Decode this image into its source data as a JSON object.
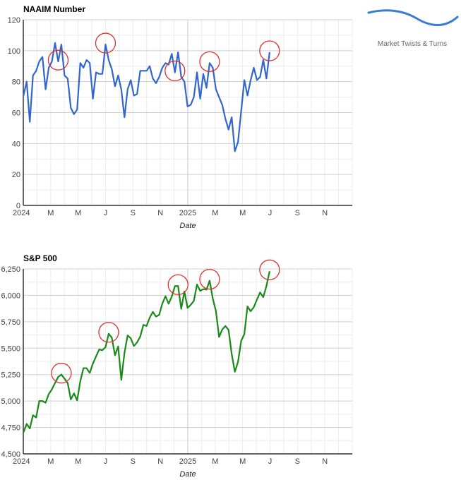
{
  "logo": {
    "text": "Market Twists & Turns",
    "color": "#3a7bd5"
  },
  "chart_data": [
    {
      "type": "line",
      "title": "NAAIM Number",
      "xlabel": "Date",
      "ylabel": "",
      "ylim": [
        0,
        120
      ],
      "yticks": [
        "0",
        "20",
        "40",
        "60",
        "80",
        "100",
        "120"
      ],
      "ytick_values": [
        0,
        20,
        40,
        60,
        80,
        100,
        120
      ],
      "xticks": [
        "2024",
        "M",
        "M",
        "J",
        "S",
        "N",
        "2025",
        "M",
        "M",
        "J",
        "S",
        "N"
      ],
      "x_start": "2024-01-03",
      "x_interval": "weekly",
      "x_range": [
        "2024-01-01",
        "2025-12-31"
      ],
      "color": "#3366cc",
      "grid": true,
      "values": [
        71,
        80,
        54,
        84,
        87,
        93,
        96,
        75,
        89,
        93,
        105,
        93,
        104,
        84,
        82,
        63,
        59,
        62,
        92,
        89,
        94,
        92,
        69,
        86,
        85,
        85,
        104,
        94,
        88,
        77,
        84,
        75,
        57,
        75,
        81,
        71,
        72,
        87,
        87,
        87,
        90,
        82,
        79,
        83,
        89,
        92,
        91,
        98,
        86,
        99,
        83,
        80,
        64,
        65,
        70,
        86,
        69,
        85,
        76,
        92,
        89,
        75,
        70,
        65,
        56,
        49,
        57,
        35,
        41,
        61,
        81,
        71,
        81,
        89,
        81,
        83,
        94,
        82,
        99
      ],
      "highlight_circles": [
        11,
        26,
        48,
        59,
        78
      ],
      "highlight_color": "#e03030"
    },
    {
      "type": "line",
      "title": "S&P 500",
      "xlabel": "Date",
      "ylabel": "",
      "ylim": [
        4500,
        6250
      ],
      "yticks": [
        "4,500",
        "4,750",
        "5,000",
        "5,250",
        "5,500",
        "5,750",
        "6,000",
        "6,250"
      ],
      "ytick_values": [
        4500,
        4750,
        5000,
        5250,
        5500,
        5750,
        6000,
        6250
      ],
      "xticks": [
        "2024",
        "M",
        "M",
        "J",
        "S",
        "N",
        "2025",
        "M",
        "M",
        "J",
        "S",
        "N"
      ],
      "x_start": "2024-01-03",
      "x_interval": "weekly",
      "x_range": [
        "2024-01-01",
        "2025-12-31"
      ],
      "color": "#1a8a1a",
      "grid": true,
      "values": [
        4704,
        4784,
        4740,
        4866,
        4844,
        5000,
        5000,
        4984,
        5066,
        5111,
        5171,
        5228,
        5251,
        5211,
        5171,
        5015,
        5073,
        5006,
        5188,
        5311,
        5311,
        5266,
        5355,
        5422,
        5488,
        5481,
        5510,
        5637,
        5599,
        5433,
        5517,
        5200,
        5455,
        5621,
        5593,
        5521,
        5555,
        5610,
        5721,
        5710,
        5788,
        5844,
        5799,
        5815,
        5921,
        5992,
        5921,
        5988,
        6088,
        6088,
        5872,
        6037,
        5881,
        5910,
        5948,
        6103,
        6043,
        6059,
        6054,
        6139,
        5970,
        5850,
        5606,
        5677,
        5710,
        5673,
        5444,
        5277,
        5371,
        5570,
        5633,
        5895,
        5850,
        5888,
        5961,
        6028,
        5983,
        6088,
        6228
      ],
      "highlight_circles": [
        12,
        27,
        49,
        59,
        78
      ],
      "highlight_color": "#e03030"
    }
  ]
}
